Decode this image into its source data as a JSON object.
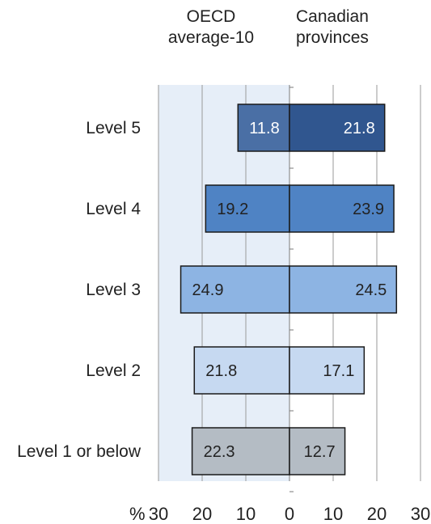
{
  "chart_data": {
    "type": "bar",
    "orientation": "horizontal",
    "layout": "back-to-back",
    "categories": [
      "Level 5",
      "Level 4",
      "Level 3",
      "Level 2",
      "Level 1 or below"
    ],
    "series": [
      {
        "name": "OECD\naverage-10",
        "values": [
          11.8,
          19.2,
          24.9,
          21.8,
          22.3
        ],
        "side": "left"
      },
      {
        "name": "Canadian\nprovinces",
        "values": [
          21.8,
          23.9,
          24.5,
          17.1,
          12.7
        ],
        "side": "right"
      }
    ],
    "bar_colors": [
      "#4a6fa5",
      "#4f83c4",
      "#8db4e3",
      "#c6d9f1",
      "#b4bcc4"
    ],
    "label_colors": [
      "#ffffff",
      "#222222",
      "#222222",
      "#222222",
      "#222222"
    ],
    "highlight_colors": {
      "left_panel": "#e6eef8",
      "top_bar_right": "#30568f"
    },
    "x_tick_labels": [
      "30",
      "20",
      "10",
      "0",
      "10",
      "20",
      "30"
    ],
    "x_unit": "%",
    "xlim": [
      -30,
      30
    ],
    "grid": true
  }
}
